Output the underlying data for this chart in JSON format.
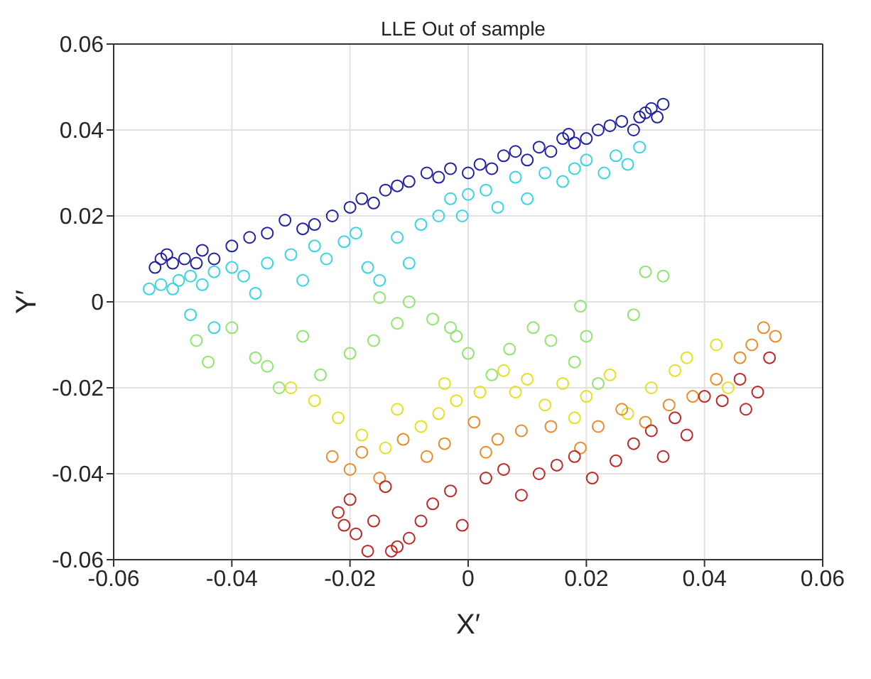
{
  "chart_data": {
    "type": "scatter",
    "title": "LLE Out of sample",
    "xlabel": "X′",
    "ylabel": "Y′",
    "xlim": [
      -0.06,
      0.06
    ],
    "ylim": [
      -0.06,
      0.06
    ],
    "xticks": [
      -0.06,
      -0.04,
      -0.02,
      0,
      0.02,
      0.04,
      0.06
    ],
    "yticks": [
      -0.06,
      -0.04,
      -0.02,
      0,
      0.02,
      0.04,
      0.06
    ],
    "grid": true,
    "marker": "circle",
    "series": [
      {
        "color": "#1f1fa8",
        "x": [
          -0.053,
          -0.052,
          -0.051,
          -0.05,
          -0.048,
          -0.046,
          -0.045,
          -0.043,
          -0.04,
          -0.037,
          -0.034,
          -0.031,
          -0.028,
          -0.026,
          -0.023,
          -0.02,
          -0.018,
          -0.016,
          -0.014,
          -0.012,
          -0.01,
          -0.007,
          -0.005,
          -0.003,
          0,
          0.002,
          0.004,
          0.006,
          0.008,
          0.01,
          0.012,
          0.014,
          0.016,
          0.017,
          0.018,
          0.02,
          0.022,
          0.024,
          0.026,
          0.028,
          0.029,
          0.03,
          0.031,
          0.033,
          0.032
        ],
        "values": [
          0.008,
          0.01,
          0.011,
          0.009,
          0.01,
          0.009,
          0.012,
          0.01,
          0.013,
          0.015,
          0.016,
          0.019,
          0.017,
          0.018,
          0.02,
          0.022,
          0.024,
          0.023,
          0.026,
          0.027,
          0.028,
          0.03,
          0.029,
          0.031,
          0.03,
          0.032,
          0.031,
          0.034,
          0.035,
          0.033,
          0.036,
          0.035,
          0.038,
          0.039,
          0.037,
          0.038,
          0.04,
          0.041,
          0.042,
          0.04,
          0.043,
          0.044,
          0.045,
          0.046,
          0.043
        ]
      },
      {
        "color": "#33d6e6",
        "x": [
          -0.054,
          -0.052,
          -0.05,
          -0.049,
          -0.047,
          -0.045,
          -0.043,
          -0.04,
          -0.038,
          -0.036,
          -0.034,
          -0.03,
          -0.028,
          -0.026,
          -0.024,
          -0.021,
          -0.019,
          -0.017,
          -0.015,
          -0.012,
          -0.01,
          -0.008,
          -0.005,
          -0.003,
          0,
          0.003,
          0.005,
          0.008,
          0.01,
          0.013,
          0.016,
          0.018,
          0.02,
          0.023,
          0.025,
          0.027,
          0.029,
          -0.043,
          -0.047,
          -0.001
        ],
        "values": [
          0.003,
          0.004,
          0.003,
          0.005,
          0.006,
          0.004,
          0.007,
          0.008,
          0.006,
          0.002,
          0.009,
          0.011,
          0.005,
          0.013,
          0.01,
          0.014,
          0.016,
          0.008,
          0.005,
          0.015,
          0.009,
          0.018,
          0.02,
          0.024,
          0.025,
          0.026,
          0.022,
          0.029,
          0.024,
          0.03,
          0.028,
          0.031,
          0.033,
          0.03,
          0.034,
          0.032,
          0.036,
          -0.006,
          -0.003,
          0.02
        ]
      },
      {
        "color": "#8ee66a",
        "x": [
          -0.046,
          -0.044,
          -0.04,
          -0.036,
          -0.034,
          -0.032,
          -0.028,
          -0.025,
          -0.02,
          -0.016,
          -0.012,
          -0.01,
          -0.006,
          -0.002,
          0,
          0.004,
          0.007,
          0.011,
          0.014,
          0.018,
          0.019,
          0.028,
          0.03,
          0.033,
          0.02,
          0.022,
          -0.003,
          -0.015
        ],
        "values": [
          -0.009,
          -0.014,
          -0.006,
          -0.013,
          -0.015,
          -0.02,
          -0.008,
          -0.017,
          -0.012,
          -0.009,
          -0.005,
          0,
          -0.004,
          -0.008,
          -0.012,
          -0.017,
          -0.011,
          -0.006,
          -0.009,
          -0.014,
          -0.001,
          -0.003,
          0.007,
          0.006,
          -0.008,
          -0.019,
          -0.006,
          0.001
        ]
      },
      {
        "color": "#e6e01e",
        "x": [
          -0.03,
          -0.026,
          -0.022,
          -0.018,
          -0.012,
          -0.008,
          -0.004,
          -0.002,
          0.002,
          0.006,
          0.01,
          0.013,
          0.016,
          0.02,
          0.024,
          0.027,
          0.031,
          0.035,
          0.037,
          0.042,
          0.044,
          -0.014,
          -0.005,
          0.008,
          0.018
        ],
        "values": [
          -0.02,
          -0.023,
          -0.027,
          -0.031,
          -0.025,
          -0.029,
          -0.019,
          -0.023,
          -0.021,
          -0.016,
          -0.018,
          -0.024,
          -0.019,
          -0.022,
          -0.017,
          -0.026,
          -0.02,
          -0.016,
          -0.013,
          -0.01,
          -0.02,
          -0.034,
          -0.026,
          -0.021,
          -0.027
        ]
      },
      {
        "color": "#ee8a26",
        "x": [
          -0.023,
          -0.02,
          -0.015,
          -0.011,
          -0.007,
          -0.004,
          0.001,
          0.005,
          0.009,
          0.014,
          0.019,
          0.022,
          0.026,
          0.03,
          0.034,
          0.038,
          0.042,
          0.046,
          0.048,
          0.05,
          0.052,
          0.003,
          -0.018
        ],
        "values": [
          -0.036,
          -0.039,
          -0.041,
          -0.032,
          -0.036,
          -0.033,
          -0.028,
          -0.032,
          -0.03,
          -0.029,
          -0.034,
          -0.029,
          -0.025,
          -0.028,
          -0.024,
          -0.022,
          -0.018,
          -0.013,
          -0.01,
          -0.006,
          -0.008,
          -0.035,
          -0.035
        ]
      },
      {
        "color": "#c42424",
        "x": [
          -0.022,
          -0.02,
          -0.019,
          -0.017,
          -0.016,
          -0.014,
          -0.013,
          -0.01,
          -0.008,
          -0.006,
          -0.003,
          -0.001,
          0.003,
          0.006,
          0.009,
          0.012,
          0.015,
          0.018,
          0.021,
          0.025,
          0.028,
          0.031,
          0.033,
          0.035,
          0.037,
          0.04,
          0.043,
          0.046,
          0.049,
          0.051,
          0.047,
          -0.021,
          -0.012
        ],
        "values": [
          -0.049,
          -0.046,
          -0.054,
          -0.058,
          -0.051,
          -0.043,
          -0.058,
          -0.055,
          -0.051,
          -0.047,
          -0.044,
          -0.052,
          -0.041,
          -0.039,
          -0.045,
          -0.04,
          -0.038,
          -0.036,
          -0.041,
          -0.037,
          -0.033,
          -0.03,
          -0.036,
          -0.027,
          -0.031,
          -0.022,
          -0.023,
          -0.018,
          -0.021,
          -0.013,
          -0.025,
          -0.052,
          -0.057
        ]
      }
    ]
  }
}
